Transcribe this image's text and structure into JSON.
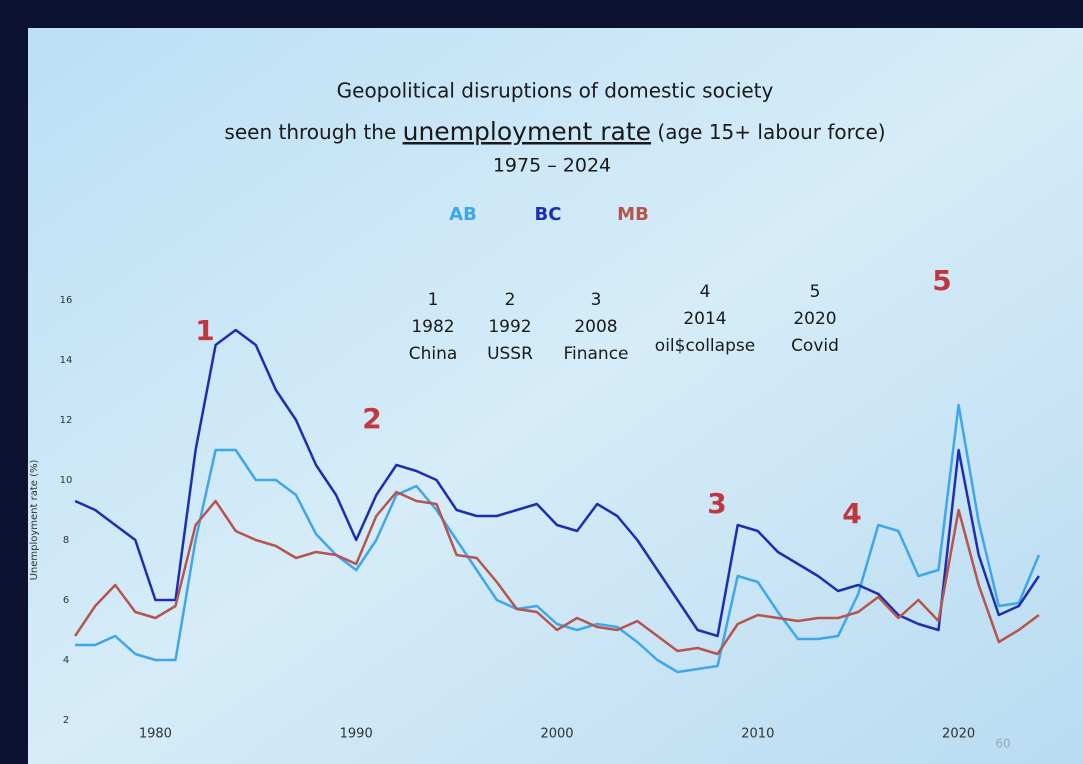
{
  "chart_data": {
    "type": "line",
    "title": "Geopolitical disruptions of domestic society",
    "subtitle_prefix": "seen through the",
    "subtitle_emphasis": "unemployment rate",
    "subtitle_suffix": "(age 15+ labour force)",
    "period": "1975 – 2024",
    "y_label": "Unemployment rate (%)",
    "page_number": "60",
    "x": [
      1976,
      1977,
      1978,
      1979,
      1980,
      1981,
      1982,
      1983,
      1984,
      1985,
      1986,
      1987,
      1988,
      1989,
      1990,
      1991,
      1992,
      1993,
      1994,
      1995,
      1996,
      1997,
      1998,
      1999,
      2000,
      2001,
      2002,
      2003,
      2004,
      2005,
      2006,
      2007,
      2008,
      2009,
      2010,
      2011,
      2012,
      2013,
      2014,
      2015,
      2016,
      2017,
      2018,
      2019,
      2020,
      2021,
      2022,
      2023,
      2024
    ],
    "series": [
      {
        "name": "AB",
        "color": "#3fa6ea",
        "values": [
          4.5,
          4.5,
          4.8,
          4.2,
          4,
          4,
          8,
          11,
          11,
          10,
          10,
          9.5,
          8.2,
          7.5,
          7,
          8,
          9.5,
          9.8,
          9,
          8,
          7,
          6,
          5.7,
          5.8,
          5.2,
          5,
          5.2,
          5.1,
          4.6,
          4,
          3.6,
          3.7,
          3.8,
          6.8,
          6.6,
          5.6,
          4.7,
          4.7,
          4.8,
          6.2,
          8.5,
          8.3,
          6.8,
          7,
          12.5,
          8.6,
          5.8,
          5.9,
          7.5
        ]
      },
      {
        "name": "BC",
        "color": "#1c2fb0",
        "values": [
          9.3,
          9,
          8.5,
          8,
          6,
          6,
          11,
          14.5,
          15,
          14.5,
          13,
          12,
          10.5,
          9.5,
          8,
          9.5,
          10.5,
          10.3,
          10,
          9,
          8.8,
          8.8,
          9,
          9.2,
          8.5,
          8.3,
          9.2,
          8.8,
          8,
          7,
          6,
          5,
          4.8,
          8.5,
          8.3,
          7.6,
          7.2,
          6.8,
          6.3,
          6.5,
          6.2,
          5.5,
          5.2,
          5,
          11,
          7.5,
          5.5,
          5.8,
          6.8
        ]
      },
      {
        "name": "MB",
        "color": "#b5564e",
        "values": [
          4.8,
          5.8,
          6.5,
          5.6,
          5.4,
          5.8,
          8.5,
          9.3,
          8.3,
          8,
          7.8,
          7.4,
          7.6,
          7.5,
          7.2,
          8.8,
          9.6,
          9.3,
          9.2,
          7.5,
          7.4,
          6.6,
          5.7,
          5.6,
          5,
          5.4,
          5.1,
          5,
          5.3,
          4.8,
          4.3,
          4.4,
          4.2,
          5.2,
          5.5,
          5.4,
          5.3,
          5.4,
          5.4,
          5.6,
          6.1,
          5.4,
          6,
          5.3,
          9,
          6.5,
          4.6,
          5,
          5.5
        ]
      }
    ],
    "xlim": [
      1975,
      2025
    ],
    "xticks": [
      1980,
      1990,
      2000,
      2010,
      2020
    ],
    "ylim": [
      2,
      16.5
    ],
    "yticks": [
      2,
      4,
      6,
      8,
      10,
      12,
      14,
      16
    ],
    "grid": false,
    "annotations": [
      "1",
      "2",
      "3",
      "4",
      "5"
    ],
    "annotation_color": "#c0383f",
    "events": [
      {
        "number": "1",
        "year": "1982",
        "label": "China"
      },
      {
        "number": "2",
        "year": "1992",
        "label": "USSR"
      },
      {
        "number": "3",
        "year": "2008",
        "label": "Finance"
      },
      {
        "number": "4",
        "year": "2014",
        "label": "oil$collapse"
      },
      {
        "number": "5",
        "year": "2020",
        "label": "Covid"
      }
    ]
  }
}
